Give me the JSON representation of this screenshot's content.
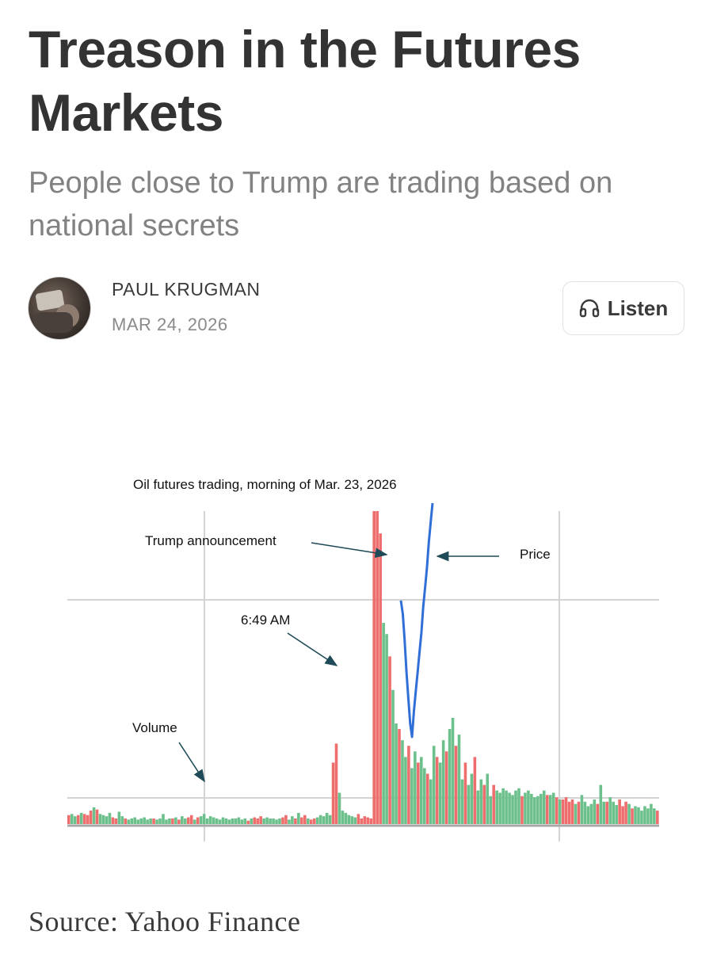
{
  "article": {
    "title": "Treason in the Futures Markets",
    "subtitle": "People close to Trump are trading based on national secrets",
    "author": "PAUL KRUGMAN",
    "date": "MAR 24, 2026",
    "listen_label": "Listen",
    "listen_icon": "headphones-icon",
    "source": "Source: Yahoo Finance"
  },
  "chart_data": {
    "type": "bar",
    "title": "Oil futures trading, morning of Mar. 23, 2026",
    "xlabel": "",
    "ylabel": "",
    "grid": true,
    "up_color": "#6cc08b",
    "down_color": "#ee6e6e",
    "price_color": "#2f6fd6",
    "annotations": [
      {
        "label": "Trump announcement",
        "target": "volume spike at announcement"
      },
      {
        "label": "6:49 AM",
        "target": "volume spike before announcement"
      },
      {
        "label": "Volume",
        "target": "volume bars"
      },
      {
        "label": "Price",
        "target": "price line"
      }
    ],
    "series": [
      {
        "name": "Volume",
        "values": [
          8,
          9,
          7,
          8,
          10,
          9,
          8,
          12,
          15,
          13,
          9,
          8,
          7,
          10,
          6,
          5,
          11,
          7,
          5,
          4,
          5,
          6,
          4,
          5,
          6,
          4,
          5,
          5,
          4,
          5,
          9,
          4,
          5,
          5,
          6,
          4,
          7,
          5,
          6,
          8,
          4,
          6,
          7,
          9,
          5,
          7,
          6,
          5,
          4,
          6,
          5,
          4,
          5,
          5,
          6,
          4,
          5,
          3,
          5,
          6,
          5,
          7,
          5,
          6,
          5,
          5,
          4,
          5,
          6,
          8,
          4,
          7,
          5,
          10,
          6,
          8,
          5,
          4,
          5,
          6,
          8,
          7,
          10,
          8,
          55,
          72,
          28,
          12,
          10,
          8,
          7,
          6,
          9,
          5,
          7,
          6,
          5,
          280,
          280,
          260,
          180,
          170,
          150,
          120,
          90,
          85,
          75,
          60,
          70,
          50,
          65,
          55,
          60,
          50,
          45,
          40,
          70,
          60,
          55,
          75,
          65,
          85,
          95,
          70,
          80,
          40,
          55,
          35,
          45,
          60,
          30,
          40,
          35,
          45,
          25,
          35,
          30,
          28,
          32,
          30,
          28,
          26,
          30,
          32,
          25,
          28,
          30,
          27,
          24,
          25,
          27,
          30,
          26,
          26,
          28,
          24,
          22,
          22,
          24,
          20,
          22,
          18,
          20,
          26,
          20,
          16,
          18,
          22,
          18,
          35,
          20,
          20,
          24,
          20,
          17,
          22,
          16,
          20,
          18,
          14,
          16,
          15,
          12,
          16,
          14,
          18,
          14,
          12
        ],
        "up_down": "mixed"
      },
      {
        "name": "Price",
        "description": "Price line drops sharply at the Trump announcement and then rises back up",
        "values": [
          100,
          96,
          88,
          78,
          70,
          62,
          58,
          66,
          72,
          78,
          84,
          90,
          98,
          104,
          110,
          118,
          124,
          130
        ]
      }
    ]
  }
}
